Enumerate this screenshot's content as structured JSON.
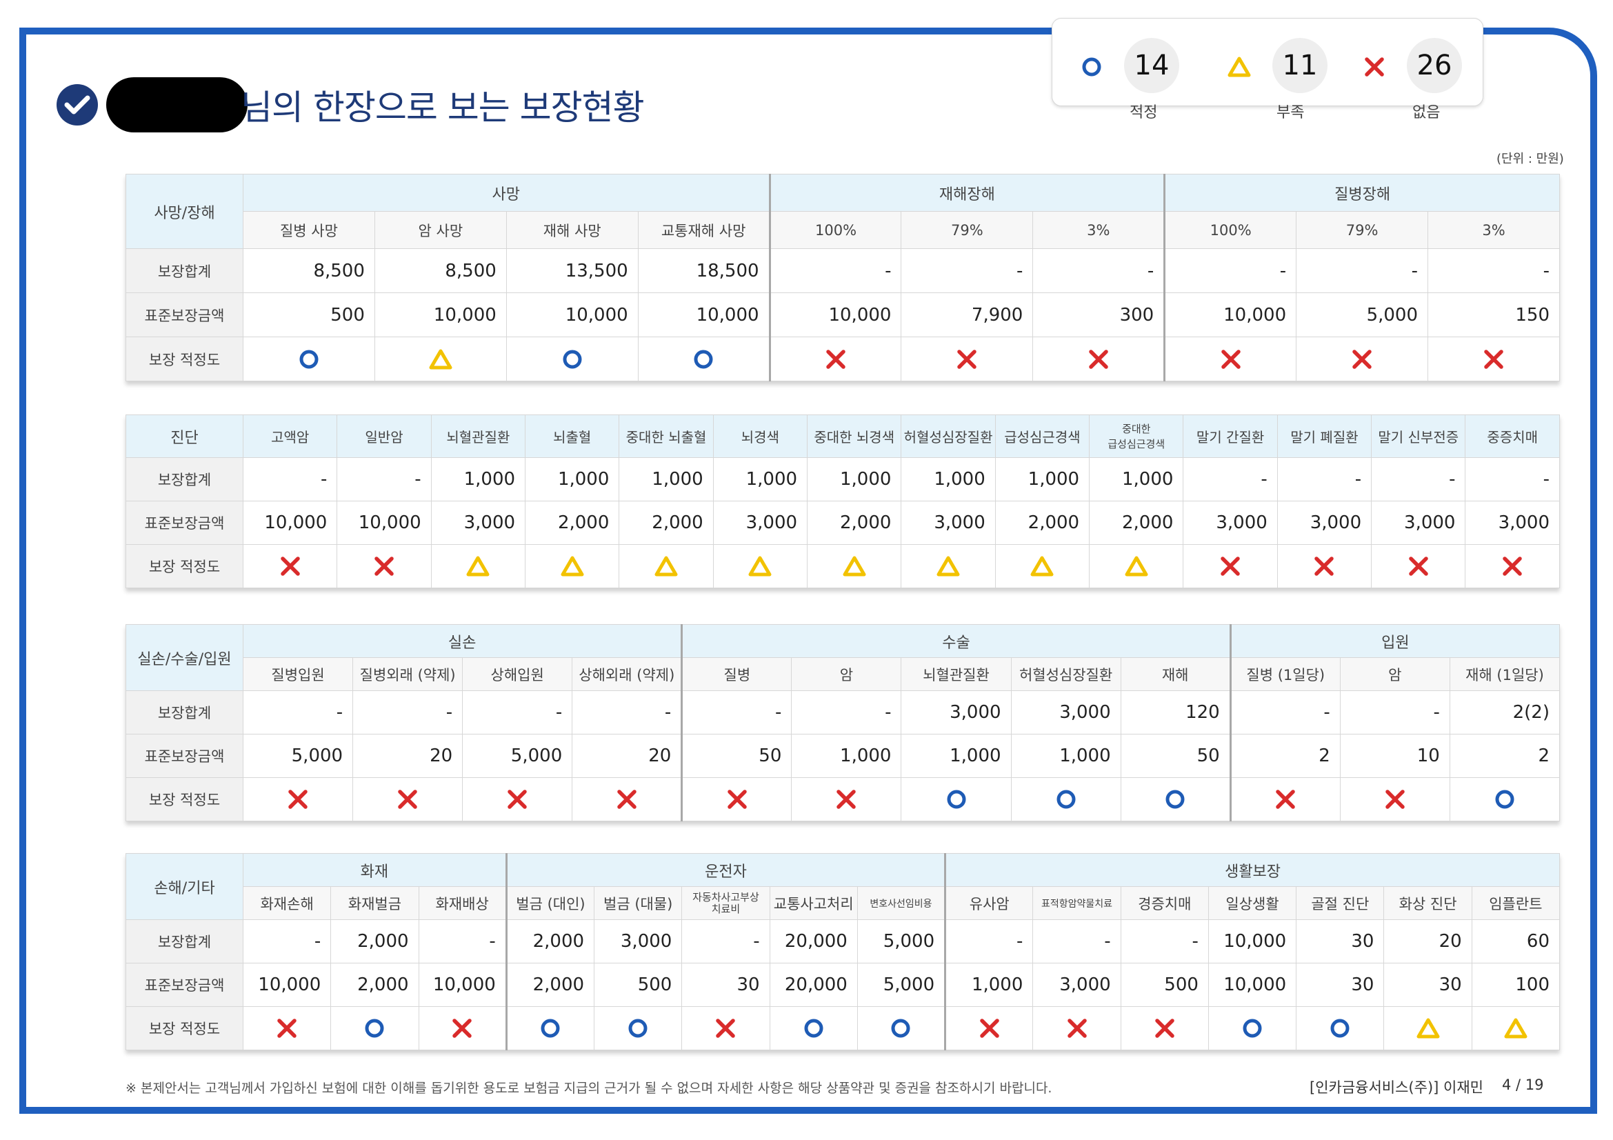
{
  "header": {
    "title": "님의 한장으로 보는 보장현황",
    "unit": "(단위 : 만원)"
  },
  "summary": {
    "adequate": {
      "count": "14",
      "label": "적정",
      "symbol": "circle"
    },
    "insufficient": {
      "count": "11",
      "label": "부족",
      "symbol": "triangle"
    },
    "none": {
      "count": "26",
      "label": "없음",
      "symbol": "x"
    }
  },
  "symbol_colors": {
    "circle": "#1e5bb5",
    "triangle": "#f2c200",
    "x": "#d92b2b"
  },
  "sections": {
    "s1": {
      "category": "사망/장해",
      "groups": [
        "사망",
        "재해장해",
        "질병장해"
      ],
      "columns": [
        "질병 사망",
        "암 사망",
        "재해 사망",
        "교통재해 사망",
        "100%",
        "79%",
        "3%",
        "100%",
        "79%",
        "3%"
      ],
      "row_labels": [
        "보장합계",
        "표준보장금액",
        "보장 적정도"
      ],
      "total": [
        "8,500",
        "8,500",
        "13,500",
        "18,500",
        "-",
        "-",
        "-",
        "-",
        "-",
        "-"
      ],
      "standard": [
        "500",
        "10,000",
        "10,000",
        "10,000",
        "10,000",
        "7,900",
        "300",
        "10,000",
        "5,000",
        "150"
      ],
      "adequacy": [
        "circle",
        "triangle",
        "circle",
        "circle",
        "x",
        "x",
        "x",
        "x",
        "x",
        "x"
      ]
    },
    "s2": {
      "category": "진단",
      "columns": [
        "고액암",
        "일반암",
        "뇌혈관질환",
        "뇌출혈",
        "중대한 뇌출혈",
        "뇌경색",
        "중대한 뇌경색",
        "허혈성심장질환",
        "급성심근경색",
        "중대한 급성심근경색",
        "말기 간질환",
        "말기 폐질환",
        "말기 신부전증",
        "중증치매"
      ],
      "column9_line1": "중대한",
      "column9_line2": "급성심근경색",
      "row_labels": [
        "보장합계",
        "표준보장금액",
        "보장 적정도"
      ],
      "total": [
        "-",
        "-",
        "1,000",
        "1,000",
        "1,000",
        "1,000",
        "1,000",
        "1,000",
        "1,000",
        "1,000",
        "-",
        "-",
        "-",
        "-"
      ],
      "standard": [
        "10,000",
        "10,000",
        "3,000",
        "2,000",
        "2,000",
        "3,000",
        "2,000",
        "3,000",
        "2,000",
        "2,000",
        "3,000",
        "3,000",
        "3,000",
        "3,000"
      ],
      "adequacy": [
        "x",
        "x",
        "triangle",
        "triangle",
        "triangle",
        "triangle",
        "triangle",
        "triangle",
        "triangle",
        "triangle",
        "x",
        "x",
        "x",
        "x"
      ]
    },
    "s3": {
      "category": "실손/수술/입원",
      "groups": [
        "실손",
        "수술",
        "입원"
      ],
      "columns": [
        "질병입원",
        "질병외래 (약제)",
        "상해입원",
        "상해외래 (약제)",
        "질병",
        "암",
        "뇌혈관질환",
        "허혈성심장질환",
        "재해",
        "질병 (1일당)",
        "암",
        "재해 (1일당)"
      ],
      "row_labels": [
        "보장합계",
        "표준보장금액",
        "보장 적정도"
      ],
      "total": [
        "-",
        "-",
        "-",
        "-",
        "-",
        "-",
        "3,000",
        "3,000",
        "120",
        "-",
        "-",
        "2(2)"
      ],
      "standard": [
        "5,000",
        "20",
        "5,000",
        "20",
        "50",
        "1,000",
        "1,000",
        "1,000",
        "50",
        "2",
        "10",
        "2"
      ],
      "adequacy": [
        "x",
        "x",
        "x",
        "x",
        "x",
        "x",
        "circle",
        "circle",
        "circle",
        "x",
        "x",
        "circle"
      ]
    },
    "s4": {
      "category": "손해/기타",
      "groups": [
        "화재",
        "운전자",
        "생활보장"
      ],
      "columns": [
        "화재손해",
        "화재벌금",
        "화재배상",
        "벌금 (대인)",
        "벌금 (대물)",
        "자동차사고부상치료비",
        "교통사고처리",
        "변호사선임비용",
        "유사암",
        "표적항암약물치료",
        "경증치매",
        "일상생활",
        "골절 진단",
        "화상 진단",
        "임플란트"
      ],
      "column5_line1": "자동차사고부상",
      "column5_line2": "치료비",
      "row_labels": [
        "보장합계",
        "표준보장금액",
        "보장 적정도"
      ],
      "total": [
        "-",
        "2,000",
        "-",
        "2,000",
        "3,000",
        "-",
        "20,000",
        "5,000",
        "-",
        "-",
        "-",
        "10,000",
        "30",
        "20",
        "60"
      ],
      "standard": [
        "10,000",
        "2,000",
        "10,000",
        "2,000",
        "500",
        "30",
        "20,000",
        "5,000",
        "1,000",
        "3,000",
        "500",
        "10,000",
        "30",
        "30",
        "100"
      ],
      "adequacy": [
        "x",
        "circle",
        "x",
        "circle",
        "circle",
        "x",
        "circle",
        "circle",
        "x",
        "x",
        "x",
        "circle",
        "circle",
        "triangle",
        "triangle"
      ]
    }
  },
  "footer": {
    "note": "※ 본제안서는 고객님께서 가입하신 보험에 대한 이해를 돕기위한 용도로 보험금 지급의 근거가 될 수 없으며 자세한 사항은 해당 상품약관 및 증권을 참조하시기 바랍니다.",
    "company": "[인카금융서비스(주)] 이재민",
    "page": "4 / 19"
  }
}
